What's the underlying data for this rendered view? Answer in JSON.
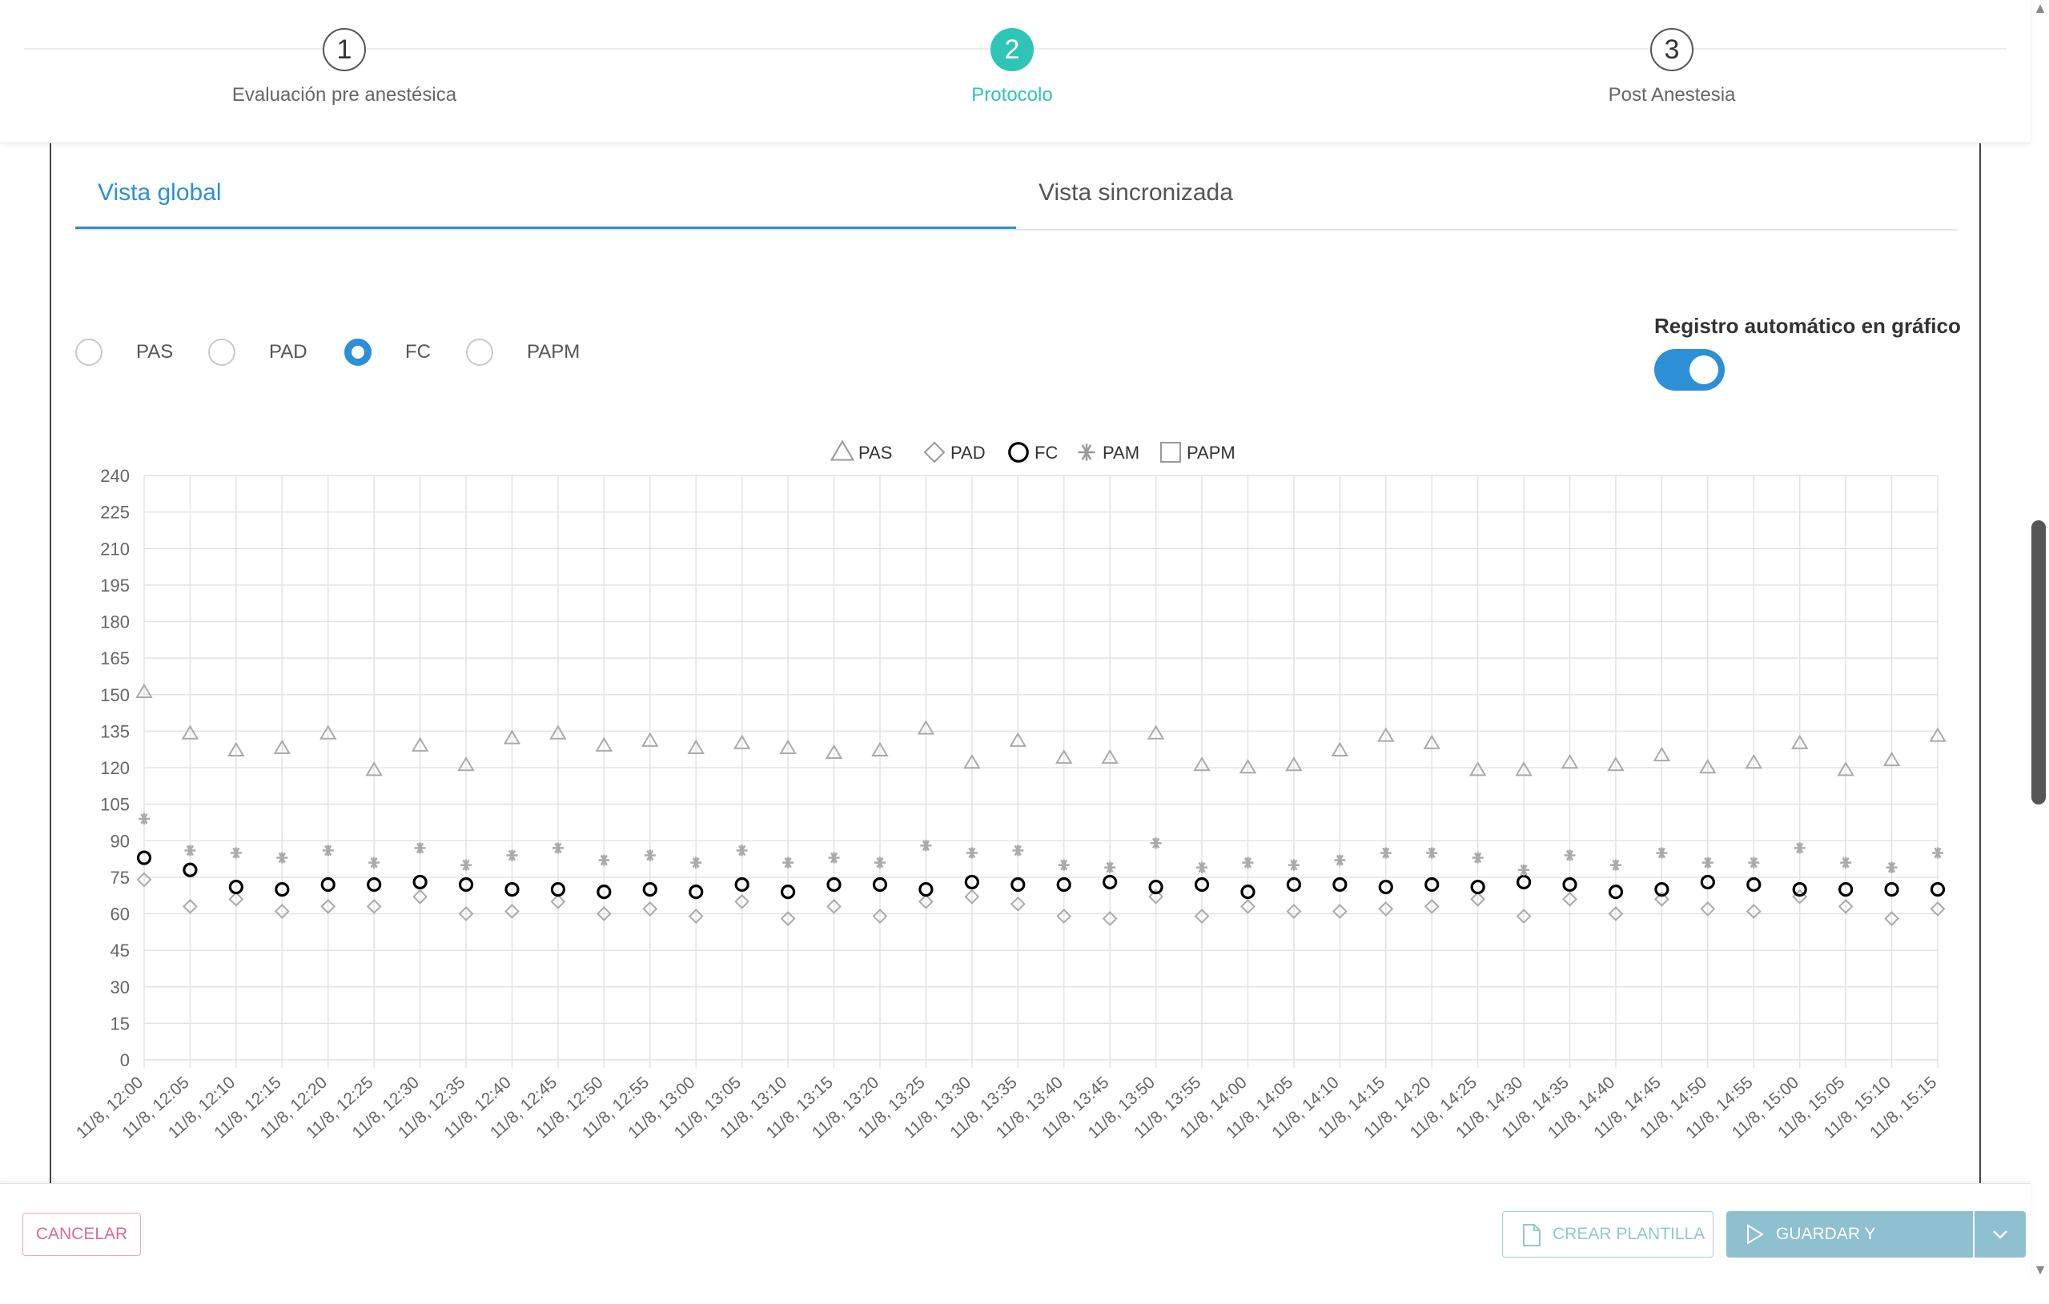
{
  "stepper": {
    "steps": [
      {
        "number": "1",
        "label": "Evaluación pre anestésica",
        "active": false
      },
      {
        "number": "2",
        "label": "Protocolo",
        "active": true
      },
      {
        "number": "3",
        "label": "Post Anestesia",
        "active": false
      }
    ]
  },
  "tabs": [
    {
      "label": "Vista global",
      "active": true
    },
    {
      "label": "Vista sincronizada",
      "active": false
    }
  ],
  "radios": [
    {
      "label": "PAS",
      "checked": false
    },
    {
      "label": "PAD",
      "checked": false
    },
    {
      "label": "FC",
      "checked": true
    },
    {
      "label": "PAPM",
      "checked": false
    }
  ],
  "toggle": {
    "label": "Registro automático en gráfico",
    "on": true
  },
  "colors": {
    "accent_teal": "#2ec4b6",
    "accent_blue": "#2d8fd5",
    "cancel_pink": "#d86a9a",
    "save_button": "#8ec0cf"
  },
  "chart_data": {
    "type": "scatter",
    "title": "",
    "xlabel": "",
    "ylabel": "",
    "ylim": [
      0,
      240
    ],
    "yticks": [
      0,
      15,
      30,
      45,
      60,
      75,
      90,
      105,
      120,
      135,
      150,
      165,
      180,
      195,
      210,
      225,
      240
    ],
    "legend_position": "top-center",
    "grid": true,
    "x": [
      "11/8, 12:00",
      "11/8, 12:05",
      "11/8, 12:10",
      "11/8, 12:15",
      "11/8, 12:20",
      "11/8, 12:25",
      "11/8, 12:30",
      "11/8, 12:35",
      "11/8, 12:40",
      "11/8, 12:45",
      "11/8, 12:50",
      "11/8, 12:55",
      "11/8, 13:00",
      "11/8, 13:05",
      "11/8, 13:10",
      "11/8, 13:15",
      "11/8, 13:20",
      "11/8, 13:25",
      "11/8, 13:30",
      "11/8, 13:35",
      "11/8, 13:40",
      "11/8, 13:45",
      "11/8, 13:50",
      "11/8, 13:55",
      "11/8, 14:00",
      "11/8, 14:05",
      "11/8, 14:10",
      "11/8, 14:15",
      "11/8, 14:20",
      "11/8, 14:25",
      "11/8, 14:30",
      "11/8, 14:35",
      "11/8, 14:40",
      "11/8, 14:45",
      "11/8, 14:50",
      "11/8, 14:55",
      "11/8, 15:00",
      "11/8, 15:05",
      "11/8, 15:10",
      "11/8, 15:15"
    ],
    "series": [
      {
        "name": "PAS",
        "marker": "triangle",
        "color": "#aaaaaa",
        "values": [
          151,
          134,
          127,
          128,
          134,
          119,
          129,
          121,
          132,
          134,
          129,
          131,
          128,
          130,
          128,
          126,
          127,
          136,
          122,
          131,
          124,
          124,
          134,
          121,
          120,
          121,
          127,
          133,
          130,
          119,
          119,
          122,
          121,
          125,
          120,
          122,
          130,
          119,
          123,
          133
        ]
      },
      {
        "name": "PAD",
        "marker": "diamond",
        "color": "#aaaaaa",
        "values": [
          74,
          63,
          66,
          61,
          63,
          63,
          67,
          60,
          61,
          65,
          60,
          62,
          59,
          65,
          58,
          63,
          59,
          65,
          67,
          64,
          59,
          58,
          67,
          59,
          63,
          61,
          61,
          62,
          63,
          66,
          59,
          66,
          60,
          66,
          62,
          61,
          67,
          63,
          58,
          62
        ]
      },
      {
        "name": "FC",
        "marker": "circle",
        "color": "#000000",
        "values": [
          83,
          78,
          71,
          70,
          72,
          72,
          73,
          72,
          70,
          70,
          69,
          70,
          69,
          72,
          69,
          72,
          72,
          70,
          73,
          72,
          72,
          73,
          71,
          72,
          69,
          72,
          72,
          71,
          72,
          71,
          73,
          72,
          69,
          70,
          73,
          72,
          70,
          70,
          70,
          70
        ]
      },
      {
        "name": "PAM",
        "marker": "asterisk",
        "color": "#aaaaaa",
        "values": [
          99,
          86,
          85,
          83,
          86,
          81,
          87,
          80,
          84,
          87,
          82,
          84,
          81,
          86,
          81,
          83,
          81,
          88,
          85,
          86,
          80,
          79,
          89,
          79,
          81,
          80,
          82,
          85,
          85,
          83,
          78,
          84,
          80,
          85,
          81,
          81,
          87,
          81,
          79,
          85
        ]
      },
      {
        "name": "PAPM",
        "marker": "square",
        "color": "#aaaaaa",
        "values": []
      }
    ]
  },
  "footer": {
    "cancel_label": "CANCELAR",
    "template_label": "CREAR PLANTILLA",
    "template_icon": "document-icon",
    "save_label": "GUARDAR Y CONTINUAR",
    "save_icon": "play-icon",
    "split_icon": "chevron-down-icon"
  }
}
